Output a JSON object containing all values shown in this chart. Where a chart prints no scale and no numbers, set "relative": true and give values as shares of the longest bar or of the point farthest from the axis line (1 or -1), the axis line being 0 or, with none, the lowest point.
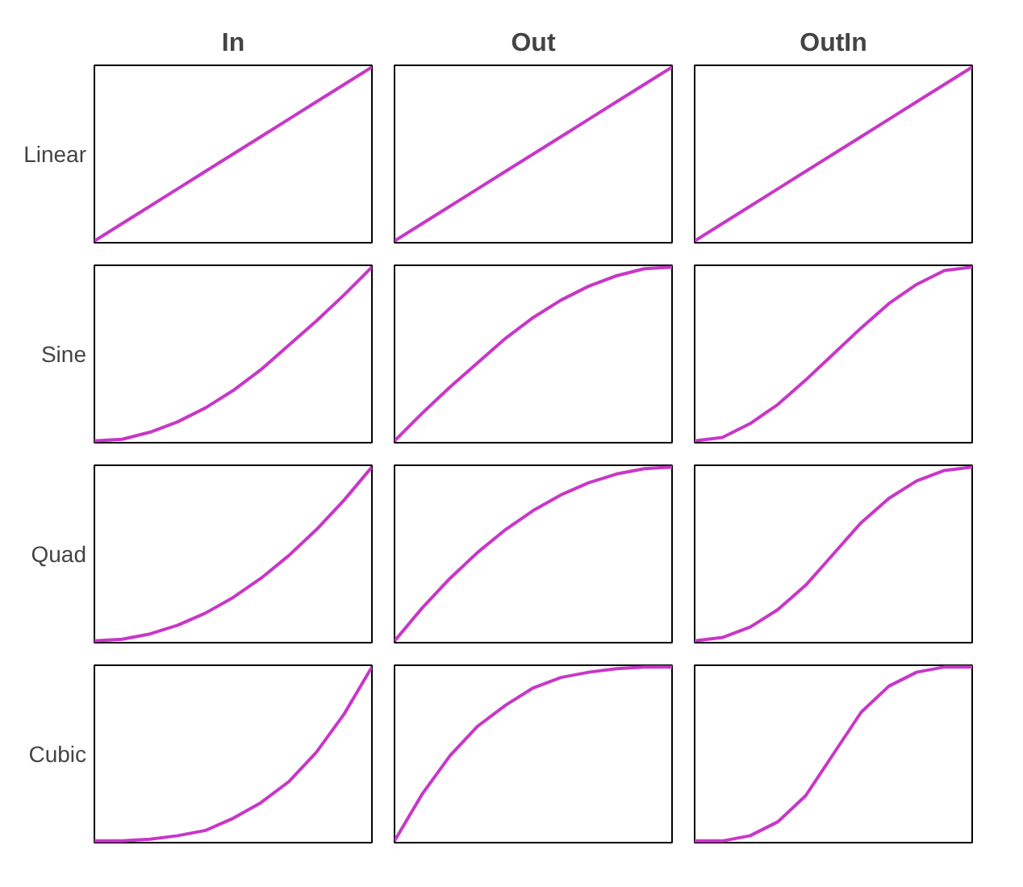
{
  "chart_data": [
    {
      "type": "line",
      "title": "In",
      "ylabel": "Linear",
      "relative": true,
      "categories": [
        null,
        null,
        null,
        null,
        null,
        null,
        null,
        null,
        null,
        null,
        null
      ],
      "series": [
        {
          "color": "#c837c8",
          "values": [
            0,
            0.1,
            0.2,
            0.3,
            0.4,
            0.5,
            0.6,
            0.7,
            0.8,
            0.9,
            1
          ]
        }
      ]
    },
    {
      "type": "line",
      "title": "Out",
      "relative": true,
      "categories": [
        null,
        null,
        null,
        null,
        null,
        null,
        null,
        null,
        null,
        null,
        null
      ],
      "series": [
        {
          "color": "#c837c8",
          "values": [
            0,
            0.1,
            0.2,
            0.3,
            0.4,
            0.5,
            0.6,
            0.7,
            0.8,
            0.9,
            1
          ]
        }
      ]
    },
    {
      "type": "line",
      "title": "OutIn",
      "relative": true,
      "categories": [
        null,
        null,
        null,
        null,
        null,
        null,
        null,
        null,
        null,
        null,
        null
      ],
      "series": [
        {
          "color": "#c837c8",
          "values": [
            0,
            0.1,
            0.2,
            0.3,
            0.4,
            0.5,
            0.6,
            0.7,
            0.8,
            0.9,
            1
          ]
        }
      ]
    },
    {
      "type": "line",
      "ylabel": "Sine",
      "relative": true,
      "categories": [
        null,
        null,
        null,
        null,
        null,
        null,
        null,
        null,
        null,
        null,
        null
      ],
      "series": [
        {
          "color": "#c837c8",
          "values": [
            0,
            0.01,
            0.05,
            0.11,
            0.19,
            0.29,
            0.41,
            0.55,
            0.69,
            0.84,
            1
          ]
        }
      ]
    },
    {
      "type": "line",
      "relative": true,
      "categories": [
        null,
        null,
        null,
        null,
        null,
        null,
        null,
        null,
        null,
        null,
        null
      ],
      "series": [
        {
          "color": "#c837c8",
          "values": [
            0,
            0.16,
            0.31,
            0.45,
            0.59,
            0.71,
            0.81,
            0.89,
            0.95,
            0.99,
            1
          ]
        }
      ]
    },
    {
      "type": "line",
      "relative": true,
      "categories": [
        null,
        null,
        null,
        null,
        null,
        null,
        null,
        null,
        null,
        null,
        null
      ],
      "series": [
        {
          "color": "#c837c8",
          "values": [
            0,
            0.02,
            0.1,
            0.21,
            0.35,
            0.5,
            0.65,
            0.79,
            0.9,
            0.98,
            1
          ]
        }
      ]
    },
    {
      "type": "line",
      "ylabel": "Quad",
      "relative": true,
      "categories": [
        null,
        null,
        null,
        null,
        null,
        null,
        null,
        null,
        null,
        null,
        null
      ],
      "series": [
        {
          "color": "#c837c8",
          "values": [
            0,
            0.01,
            0.04,
            0.09,
            0.16,
            0.25,
            0.36,
            0.49,
            0.64,
            0.81,
            1
          ]
        }
      ]
    },
    {
      "type": "line",
      "relative": true,
      "categories": [
        null,
        null,
        null,
        null,
        null,
        null,
        null,
        null,
        null,
        null,
        null
      ],
      "series": [
        {
          "color": "#c837c8",
          "values": [
            0,
            0.19,
            0.36,
            0.51,
            0.64,
            0.75,
            0.84,
            0.91,
            0.96,
            0.99,
            1
          ]
        }
      ]
    },
    {
      "type": "line",
      "relative": true,
      "categories": [
        null,
        null,
        null,
        null,
        null,
        null,
        null,
        null,
        null,
        null,
        null
      ],
      "series": [
        {
          "color": "#c837c8",
          "values": [
            0,
            0.02,
            0.08,
            0.18,
            0.32,
            0.5,
            0.68,
            0.82,
            0.92,
            0.98,
            1
          ]
        }
      ]
    },
    {
      "type": "line",
      "ylabel": "Cubic",
      "relative": true,
      "categories": [
        null,
        null,
        null,
        null,
        null,
        null,
        null,
        null,
        null,
        null,
        null
      ],
      "series": [
        {
          "color": "#c837c8",
          "values": [
            0,
            0,
            0.01,
            0.03,
            0.06,
            0.13,
            0.22,
            0.34,
            0.51,
            0.73,
            1
          ]
        }
      ]
    },
    {
      "type": "line",
      "relative": true,
      "categories": [
        null,
        null,
        null,
        null,
        null,
        null,
        null,
        null,
        null,
        null,
        null
      ],
      "series": [
        {
          "color": "#c837c8",
          "values": [
            0,
            0.27,
            0.49,
            0.66,
            0.78,
            0.88,
            0.94,
            0.97,
            0.99,
            1,
            1
          ]
        }
      ]
    },
    {
      "type": "line",
      "relative": true,
      "categories": [
        null,
        null,
        null,
        null,
        null,
        null,
        null,
        null,
        null,
        null,
        null
      ],
      "series": [
        {
          "color": "#c837c8",
          "values": [
            0,
            0,
            0.03,
            0.11,
            0.26,
            0.5,
            0.74,
            0.89,
            0.97,
            1,
            1
          ]
        }
      ]
    }
  ]
}
